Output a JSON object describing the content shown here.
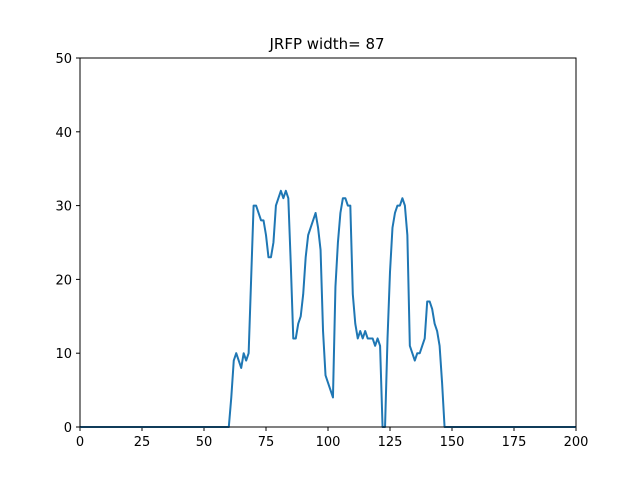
{
  "chart_data": {
    "type": "line",
    "title": "JRFP width= 87",
    "xlabel": "",
    "ylabel": "",
    "xlim": [
      0,
      200
    ],
    "ylim": [
      0,
      50
    ],
    "xticks": [
      0,
      25,
      50,
      75,
      100,
      125,
      150,
      175,
      200
    ],
    "yticks": [
      0,
      10,
      20,
      30,
      40,
      50
    ],
    "grid": false,
    "line_color": "#1f77b4",
    "series": [
      {
        "x": [
          0,
          60,
          61,
          62,
          63,
          64,
          65,
          66,
          67,
          68,
          69,
          70,
          71,
          72,
          73,
          74,
          75,
          76,
          77,
          78,
          79,
          80,
          81,
          82,
          83,
          84,
          85,
          86,
          87,
          88,
          89,
          90,
          91,
          92,
          93,
          94,
          95,
          96,
          97,
          98,
          99,
          100,
          101,
          102,
          103,
          104,
          105,
          106,
          107,
          108,
          109,
          110,
          111,
          112,
          113,
          114,
          115,
          116,
          117,
          118,
          119,
          120,
          121,
          122,
          123,
          124,
          125,
          126,
          127,
          128,
          129,
          130,
          131,
          132,
          133,
          134,
          135,
          136,
          137,
          138,
          139,
          140,
          141,
          142,
          143,
          144,
          145,
          146,
          147,
          200
        ],
        "y": [
          0,
          0,
          4,
          9,
          10,
          9,
          8,
          10,
          9,
          10,
          20,
          30,
          30,
          29,
          28,
          28,
          26,
          23,
          23,
          25,
          30,
          31,
          32,
          31,
          32,
          31,
          22,
          12,
          12,
          14,
          15,
          18,
          23,
          26,
          27,
          28,
          29,
          27,
          24,
          13,
          7,
          6,
          5,
          4,
          19,
          25,
          29,
          31,
          31,
          30,
          30,
          18,
          14,
          12,
          13,
          12,
          13,
          12,
          12,
          12,
          11,
          12,
          11,
          0,
          0,
          12,
          21,
          27,
          29,
          30,
          30,
          31,
          30,
          26,
          11,
          10,
          9,
          10,
          10,
          11,
          12,
          17,
          17,
          16,
          14,
          13,
          11,
          6,
          0,
          0
        ]
      }
    ]
  }
}
